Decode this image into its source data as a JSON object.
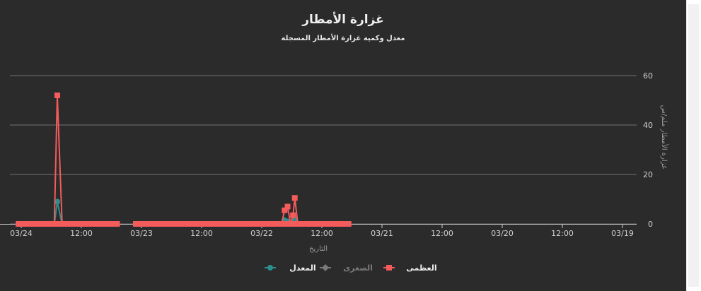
{
  "chart_data": {
    "type": "line",
    "title": "غزارة الأمطار",
    "subtitle": "معدل وكمية غزارة الأمطار المسجلة",
    "xlabel": "التاريخ",
    "ylabel": "غزارة الأمطار ملم/س",
    "ylim": [
      0,
      70
    ],
    "yticks": [
      0,
      20,
      40,
      60
    ],
    "x_reversed": true,
    "x_tick_labels": [
      "03/24",
      "12:00",
      "03/23",
      "12:00",
      "03/22",
      "12:00",
      "03/21",
      "12:00",
      "03/20",
      "12:00",
      "03/19"
    ],
    "grid": true,
    "legend_position": "bottom",
    "colors": {
      "max": "#f45b5b",
      "min": "#707070",
      "avg": "#2b908f",
      "background": "#2b2b2b",
      "grid": "#707070"
    },
    "series": [
      {
        "name": "المعدل",
        "key": "avg",
        "marker": "circle",
        "visible": true,
        "segments": [
          [
            [
              0.05,
              0
            ],
            [
              0.3,
              0
            ],
            [
              0.55,
              0
            ],
            [
              0.6,
              9
            ],
            [
              0.68,
              0
            ],
            [
              0.9,
              0
            ],
            [
              1.22,
              0
            ],
            [
              1.5,
              0
            ]
          ],
          [
            [
              2.0,
              0
            ],
            [
              2.3,
              0
            ],
            [
              2.6,
              0
            ],
            [
              2.9,
              0
            ],
            [
              3.2,
              0
            ],
            [
              3.5,
              0
            ],
            [
              3.8,
              0
            ],
            [
              4.1,
              0
            ],
            [
              4.33,
              0
            ],
            [
              4.38,
              1.5
            ],
            [
              4.43,
              1
            ],
            [
              4.48,
              0
            ],
            [
              4.52,
              0.5
            ],
            [
              4.55,
              2
            ],
            [
              4.6,
              0
            ],
            [
              4.8,
              0
            ],
            [
              5.0,
              0
            ],
            [
              5.2,
              0
            ],
            [
              5.35,
              0
            ]
          ]
        ]
      },
      {
        "name": "الصغرى",
        "key": "min",
        "marker": "diamond",
        "visible": false,
        "segments": []
      },
      {
        "name": "العظمى",
        "key": "max",
        "marker": "square",
        "visible": true,
        "segments": [
          [
            [
              0.05,
              0
            ],
            [
              0.3,
              0
            ],
            [
              0.55,
              0
            ],
            [
              0.6,
              52
            ],
            [
              0.68,
              0
            ],
            [
              0.9,
              0
            ],
            [
              1.22,
              0
            ],
            [
              1.5,
              0
            ]
          ],
          [
            [
              2.0,
              0
            ],
            [
              2.3,
              0
            ],
            [
              2.6,
              0
            ],
            [
              2.9,
              0
            ],
            [
              3.2,
              0
            ],
            [
              3.5,
              0
            ],
            [
              3.8,
              0
            ],
            [
              4.1,
              0
            ],
            [
              4.33,
              0
            ],
            [
              4.38,
              5.5
            ],
            [
              4.43,
              7
            ],
            [
              4.48,
              0
            ],
            [
              4.52,
              3.5
            ],
            [
              4.55,
              10.5
            ],
            [
              4.6,
              0
            ],
            [
              4.8,
              0
            ],
            [
              5.0,
              0
            ],
            [
              5.2,
              0
            ],
            [
              5.35,
              0
            ]
          ]
        ]
      }
    ]
  }
}
